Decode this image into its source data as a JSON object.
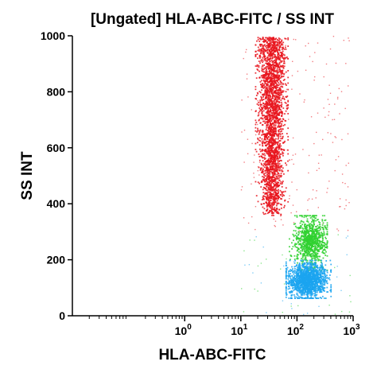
{
  "chart_data": {
    "type": "scatter",
    "title": "[Ungated] HLA-ABC-FITC / SS INT",
    "xlabel": "HLA-ABC-FITC",
    "ylabel": "SS INT",
    "x_scale": "log",
    "xlim": [
      0.01,
      1000
    ],
    "ylim": [
      0,
      1000
    ],
    "x_ticks": [
      {
        "value": 1,
        "base": "10",
        "exp": "0"
      },
      {
        "value": 10,
        "base": "10",
        "exp": "1"
      },
      {
        "value": 100,
        "base": "10",
        "exp": "2"
      },
      {
        "value": 1000,
        "base": "10",
        "exp": "3"
      }
    ],
    "y_ticks": [
      {
        "value": 0,
        "label": "0"
      },
      {
        "value": 200,
        "label": "200"
      },
      {
        "value": 400,
        "label": "400"
      },
      {
        "value": 600,
        "label": "600"
      },
      {
        "value": 800,
        "label": "800"
      },
      {
        "value": 1000,
        "label": "1000"
      }
    ],
    "grid": false,
    "legend": "none",
    "series": [
      {
        "color": "#e8141c",
        "x_range": [
          20,
          60
        ],
        "y_range": [
          360,
          1000
        ],
        "x_center": 35,
        "y_center": 660
      },
      {
        "color": "#2fd12f",
        "x_range": [
          80,
          300
        ],
        "y_range": [
          180,
          360
        ],
        "x_center": 170,
        "y_center": 270
      },
      {
        "color": "#1ba4f0",
        "x_range": [
          70,
          350
        ],
        "y_range": [
          80,
          200
        ],
        "x_center": 150,
        "y_center": 130
      }
    ]
  }
}
